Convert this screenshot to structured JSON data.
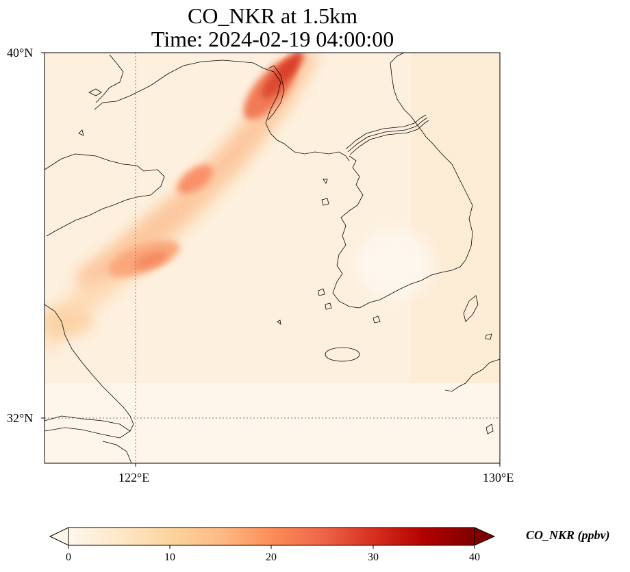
{
  "title": {
    "line1": "CO_NKR at 1.5km",
    "line2": "Time: 2024-02-19 04:00:00"
  },
  "axes": {
    "lon_ticks": [
      "122°E",
      "130°E"
    ],
    "lat_ticks": [
      "40°N",
      "32°N"
    ],
    "lon_range": [
      120,
      130
    ],
    "lat_range": [
      31,
      40
    ],
    "gridlines": "dotted"
  },
  "colorbar": {
    "label": "CO_NKR (ppbv)",
    "ticks": [
      "0",
      "10",
      "20",
      "30",
      "40"
    ],
    "min": 0,
    "max": 40,
    "colormap": "OrRd",
    "extend": "both",
    "colors": [
      "#fff7ec",
      "#fee8c8",
      "#fdd49e",
      "#fdbb84",
      "#fc8d59",
      "#ef6548",
      "#d7301f",
      "#b30000",
      "#7f0000"
    ]
  },
  "map": {
    "variable": "CO_NKR",
    "level": "1.5km",
    "plume_peak_region": "north of Shandong / Bohai (near 124–125°E, 39–40°N)"
  }
}
